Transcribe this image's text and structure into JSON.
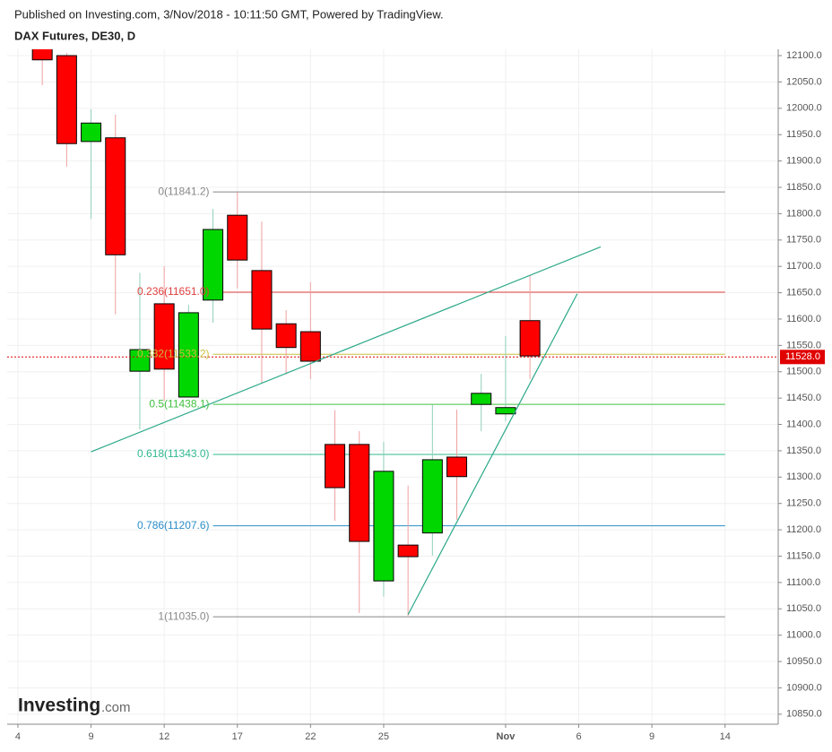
{
  "chart_data": {
    "type": "candlestick",
    "subtitle": "Published on Investing.com, 3/Nov/2018 - 10:11:50 GMT, Powered by TradingView.",
    "title": "DAX Futures, DE30, D",
    "watermark": {
      "name": "Investing",
      "suffix": ".com"
    },
    "x": [
      1,
      2,
      3,
      4,
      5,
      6,
      7,
      8,
      9,
      10,
      11,
      12,
      13,
      14,
      15,
      16,
      17,
      18,
      19,
      20,
      21
    ],
    "open": [
      12120,
      12100,
      11937,
      11944,
      11501,
      11629,
      11452,
      11636,
      11797,
      11692,
      11591,
      11576,
      11362,
      11362,
      11103,
      11171,
      11194,
      11338,
      11438,
      11420,
      11597
    ],
    "high": [
      12140,
      12105,
      11998,
      11988,
      11688,
      11700,
      11627,
      11809,
      11841,
      11785,
      11617,
      11670,
      11427,
      11387,
      11367,
      11284,
      11438,
      11428,
      11496,
      11568,
      11683
    ],
    "low": [
      12044,
      11889,
      11790,
      11609,
      11391,
      11444,
      11452,
      11593,
      11658,
      11478,
      11495,
      11486,
      11217,
      11042,
      11073,
      11035,
      11151,
      11219,
      11387,
      11406,
      11486
    ],
    "close": [
      12092,
      11933,
      11972,
      11722,
      11542,
      11505,
      11612,
      11770,
      11712,
      11581,
      11546,
      11520,
      11280,
      11178,
      11311,
      11149,
      11333,
      11301,
      11459,
      11432,
      11530
    ],
    "up_color": "#00d600",
    "down_color": "#ff0000",
    "xlim": [
      -0.44,
      31.18
    ],
    "xticks": [
      {
        "value": 0,
        "label": "4"
      },
      {
        "value": 3,
        "label": "9"
      },
      {
        "value": 6,
        "label": "12"
      },
      {
        "value": 9,
        "label": "17"
      },
      {
        "value": 12,
        "label": "22"
      },
      {
        "value": 15,
        "label": "25"
      },
      {
        "value": 20,
        "label": "Nov"
      },
      {
        "value": 23,
        "label": "6"
      },
      {
        "value": 26,
        "label": "9"
      },
      {
        "value": 29,
        "label": "14"
      }
    ],
    "ylim": [
      10831,
      12112
    ],
    "yticks": [
      {
        "value": 10850,
        "label": "10850.0"
      },
      {
        "value": 10900,
        "label": "10900.0"
      },
      {
        "value": 10950,
        "label": "10950.0"
      },
      {
        "value": 11000,
        "label": "11000.0"
      },
      {
        "value": 11050,
        "label": "11050.0"
      },
      {
        "value": 11100,
        "label": "11100.0"
      },
      {
        "value": 11150,
        "label": "11150.0"
      },
      {
        "value": 11200,
        "label": "11200.0"
      },
      {
        "value": 11250,
        "label": "11250.0"
      },
      {
        "value": 11300,
        "label": "11300.0"
      },
      {
        "value": 11350,
        "label": "11350.0"
      },
      {
        "value": 11400,
        "label": "11400.0"
      },
      {
        "value": 11450,
        "label": "11450.0"
      },
      {
        "value": 11500,
        "label": "11500.0"
      },
      {
        "value": 11550,
        "label": "11550.0"
      },
      {
        "value": 11600,
        "label": "11600.0"
      },
      {
        "value": 11650,
        "label": "11650.0"
      },
      {
        "value": 11700,
        "label": "11700.0"
      },
      {
        "value": 11750,
        "label": "11750.0"
      },
      {
        "value": 11800,
        "label": "11800.0"
      },
      {
        "value": 11850,
        "label": "11850.0"
      },
      {
        "value": 11900,
        "label": "11900.0"
      },
      {
        "value": 11950,
        "label": "11950.0"
      },
      {
        "value": 12000,
        "label": "12000.0"
      },
      {
        "value": 12050,
        "label": "12050.0"
      },
      {
        "value": 12100,
        "label": "12100.0"
      }
    ],
    "grid": true,
    "fib_levels": [
      {
        "label": "0(11841.2)",
        "value": 11841.2,
        "color": "#888888"
      },
      {
        "label": "0.236(11651.0)",
        "value": 11651.0,
        "color": "#e04040"
      },
      {
        "label": "0.382(11533.2)",
        "value": 11533.2,
        "color": "#c8c040"
      },
      {
        "label": "0.5(11438.1)",
        "value": 11438.1,
        "color": "#40c040"
      },
      {
        "label": "0.618(11343.0)",
        "value": 11343.0,
        "color": "#30b890"
      },
      {
        "label": "0.786(11207.6)",
        "value": 11207.6,
        "color": "#2a8ec8"
      },
      {
        "label": "1(11035.0)",
        "value": 11035.0,
        "color": "#888888"
      }
    ],
    "fib_x": [
      8,
      29
    ],
    "trendlines": [
      {
        "x": [
          3,
          23.9
        ],
        "y": [
          11348,
          11737
        ],
        "color": "#2aa888"
      },
      {
        "x": [
          16,
          22.94
        ],
        "y": [
          11039,
          11648
        ],
        "color": "#2aa888"
      }
    ],
    "price_line": {
      "value": 11528,
      "label": "11528.0",
      "color": "#e00000"
    }
  }
}
